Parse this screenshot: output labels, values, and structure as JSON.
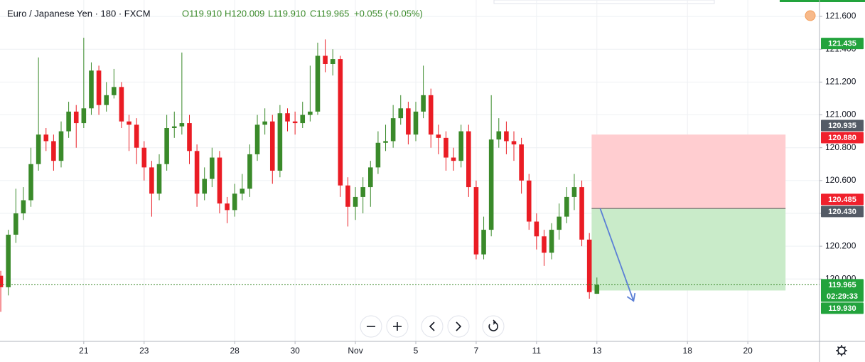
{
  "header": {
    "title": "Euro / Japanese Yen · 180 · FXCM",
    "ohlc_labels": [
      "O119.910",
      "H120.009",
      "L119.910",
      "C119.965"
    ],
    "change_label": "+0.055 (+0.05%)"
  },
  "chart_data": {
    "type": "candlestick",
    "up_color": "#3a8a2a",
    "down_color": "#ea1c24",
    "grid": true,
    "candles": {
      "open": [
        120.02,
        119.95,
        120.27,
        120.4,
        120.48,
        120.7,
        120.88,
        120.84,
        120.72,
        120.9,
        121.02,
        120.95,
        121.04,
        121.27,
        121.06,
        121.12,
        121.17,
        120.96,
        120.94,
        120.8,
        120.68,
        120.52,
        120.7,
        120.92,
        120.93,
        120.95,
        120.78,
        120.52,
        120.61,
        120.74,
        120.46,
        120.42,
        120.52,
        120.55,
        120.76,
        120.94,
        120.96,
        120.66,
        121.01,
        120.96,
        120.95,
        121.0,
        121.02,
        121.36,
        121.31,
        121.34,
        120.57,
        120.44,
        120.5,
        120.56,
        120.68,
        120.83,
        120.84,
        120.98,
        121.04,
        120.88,
        121.02,
        121.12,
        120.88,
        120.86,
        120.74,
        120.72,
        120.9,
        120.56,
        120.15,
        120.3,
        120.85,
        120.9,
        120.84,
        120.82,
        120.6,
        120.35,
        120.26,
        120.16,
        120.3,
        120.38,
        120.5,
        120.56,
        120.24,
        119.91
      ],
      "high": [
        120.05,
        120.3,
        120.55,
        120.56,
        120.8,
        121.35,
        120.92,
        120.88,
        120.96,
        121.08,
        121.06,
        121.47,
        121.32,
        121.3,
        121.2,
        121.28,
        121.2,
        121.0,
        120.98,
        120.84,
        120.72,
        120.76,
        121.0,
        121.02,
        121.38,
        121.0,
        120.82,
        120.68,
        120.8,
        120.78,
        120.5,
        120.58,
        120.64,
        120.82,
        121.0,
        121.04,
        121.0,
        121.06,
        121.04,
        121.02,
        121.08,
        121.3,
        121.44,
        121.46,
        121.4,
        121.36,
        120.62,
        120.56,
        120.62,
        120.72,
        120.9,
        120.94,
        121.06,
        121.12,
        121.08,
        121.08,
        121.3,
        121.16,
        120.94,
        120.9,
        120.8,
        120.94,
        120.94,
        120.6,
        120.38,
        121.12,
        120.98,
        120.96,
        120.9,
        120.86,
        120.64,
        120.4,
        120.3,
        120.34,
        120.46,
        120.56,
        120.64,
        120.6,
        120.28,
        120.009
      ],
      "low": [
        119.8,
        119.9,
        120.22,
        120.36,
        120.44,
        120.66,
        120.78,
        120.66,
        120.68,
        120.86,
        120.8,
        120.92,
        121.0,
        121.0,
        121.02,
        121.1,
        120.92,
        120.78,
        120.7,
        120.6,
        120.38,
        120.48,
        120.66,
        120.86,
        120.88,
        120.7,
        120.44,
        120.48,
        120.56,
        120.4,
        120.34,
        120.38,
        120.48,
        120.5,
        120.72,
        120.88,
        120.58,
        120.62,
        120.9,
        120.88,
        120.92,
        120.96,
        121.0,
        121.26,
        121.24,
        120.5,
        120.32,
        120.36,
        120.4,
        120.44,
        120.64,
        120.78,
        120.8,
        120.94,
        120.82,
        120.84,
        120.98,
        120.8,
        120.76,
        120.66,
        120.66,
        120.68,
        120.5,
        120.12,
        120.12,
        120.26,
        120.8,
        120.76,
        120.72,
        120.52,
        120.3,
        120.18,
        120.08,
        120.12,
        120.24,
        120.34,
        120.42,
        120.2,
        119.88,
        119.91
      ],
      "close": [
        119.95,
        120.27,
        120.4,
        120.48,
        120.7,
        120.88,
        120.84,
        120.72,
        120.9,
        121.02,
        120.95,
        121.04,
        121.27,
        121.06,
        121.12,
        121.17,
        120.96,
        120.94,
        120.8,
        120.68,
        120.52,
        120.7,
        120.92,
        120.93,
        120.95,
        120.78,
        120.52,
        120.61,
        120.74,
        120.46,
        120.42,
        120.52,
        120.55,
        120.76,
        120.94,
        120.96,
        120.66,
        121.01,
        120.96,
        120.95,
        121.0,
        121.02,
        121.36,
        121.31,
        121.34,
        120.57,
        120.44,
        120.5,
        120.56,
        120.68,
        120.83,
        120.84,
        120.98,
        121.04,
        120.88,
        121.02,
        121.12,
        120.88,
        120.86,
        120.74,
        120.72,
        120.9,
        120.56,
        120.15,
        120.3,
        120.85,
        120.9,
        120.84,
        120.82,
        120.6,
        120.35,
        120.26,
        120.16,
        120.3,
        120.38,
        120.5,
        120.56,
        120.24,
        119.92,
        119.965
      ]
    },
    "xlim": [
      -0.1,
      108.5
    ],
    "xticks": [
      {
        "value": 11,
        "label": "21"
      },
      {
        "value": 19,
        "label": "23"
      },
      {
        "value": 31,
        "label": "28"
      },
      {
        "value": 39,
        "label": "30"
      },
      {
        "value": 47,
        "label": "Nov"
      },
      {
        "value": 55,
        "label": "5"
      },
      {
        "value": 63,
        "label": "7"
      },
      {
        "value": 71,
        "label": "11"
      },
      {
        "value": 79,
        "label": "13"
      },
      {
        "value": 91,
        "label": "18"
      },
      {
        "value": 99,
        "label": "20"
      }
    ],
    "ylim": [
      119.62,
      121.7
    ],
    "yticks": [
      {
        "value": 121.6,
        "label": "121.600"
      },
      {
        "value": 121.4,
        "label": "121.400"
      },
      {
        "value": 121.2,
        "label": "121.200"
      },
      {
        "value": 121.0,
        "label": "121.000"
      },
      {
        "value": 120.8,
        "label": "120.800"
      },
      {
        "value": 120.6,
        "label": "120.600"
      },
      {
        "value": 120.4,
        "label": "120.400"
      },
      {
        "value": 120.2,
        "label": "120.200"
      },
      {
        "value": 120.0,
        "label": "120.000"
      }
    ],
    "position": {
      "entry": 120.43,
      "stop": 120.88,
      "target": 119.93,
      "x_start": 78.3,
      "x_end": 104,
      "stop_color": "#ffcdd0",
      "target_color": "#c9ebc9"
    },
    "price_tags": [
      {
        "value": 121.435,
        "label": "121.435",
        "color": "#22a33c"
      },
      {
        "value": 120.935,
        "label": "120.935",
        "color": "#545b66"
      },
      {
        "value": 120.88,
        "label": "120.880",
        "color": "#f0202c"
      },
      {
        "value": 120.485,
        "label": "120.485",
        "color": "#f0202c"
      },
      {
        "value": 120.43,
        "label": "120.430",
        "color": "#545b66"
      },
      {
        "value": 119.965,
        "label": "119.965",
        "color": "#22a33c",
        "countdown": "02:29:33"
      },
      {
        "value": 119.93,
        "label": "119.930",
        "color": "#22a33c"
      }
    ]
  }
}
